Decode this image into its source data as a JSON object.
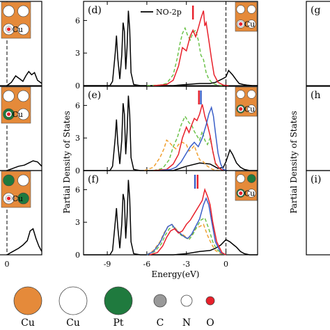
{
  "colors": {
    "cu": "#e58a3a",
    "pt": "#1f7a3e",
    "red": "#e8202a",
    "blue": "#3a5fc8",
    "green": "#6cc24a",
    "orange": "#f0a030",
    "black": "#000000",
    "gray": "#999999"
  },
  "chart_data": {
    "type": "line",
    "xlabel": "Energy(eV)",
    "ylabel": "Partial Density of States",
    "xlim": [
      -10.8,
      2.4
    ],
    "xticks": [
      "-9",
      "-6",
      "-3",
      "0"
    ],
    "yticks": [
      "0",
      "3",
      "6"
    ],
    "legend": "NO-2p",
    "left_partial": {
      "panel_labels": [],
      "xtick": "0"
    },
    "right_partial": {
      "panel_labels": [
        "(g",
        "(h",
        "(i)"
      ]
    },
    "panels": [
      {
        "label": "(d)",
        "ylim": [
          0,
          7.5
        ],
        "marker_x": [
          -2.5
        ],
        "marker_colors": [
          "red"
        ],
        "series": [
          {
            "name": "NO-2p",
            "color": "black",
            "dash": "",
            "x": [
              -10.8,
              -8.8,
              -8.6,
              -8.4,
              -8.3,
              -8.2,
              -8.05,
              -7.9,
              -7.8,
              -7.7,
              -7.6,
              -7.5,
              -7.4,
              -7.3,
              -7.2,
              -7.0,
              -6.5,
              -4.0,
              -3.0,
              -2.0,
              -1.2,
              -0.8,
              -0.3,
              0.0,
              0.2,
              0.5,
              0.8,
              1.0,
              1.3,
              1.6,
              2.0,
              2.4
            ],
            "y": [
              0,
              0,
              0.4,
              3.0,
              4.6,
              2.5,
              0.6,
              2.8,
              5.8,
              5.0,
              1.5,
              3.5,
              6.9,
              5.2,
              1.2,
              0.1,
              0,
              0,
              0.1,
              0.2,
              0.2,
              0.3,
              0.6,
              0.8,
              1.4,
              1.0,
              0.5,
              0.2,
              0.1,
              0.05,
              0,
              0
            ]
          },
          {
            "name": "",
            "color": "green",
            "dash": "5,3",
            "x": [
              -6.0,
              -5.0,
              -4.5,
              -4.0,
              -3.7,
              -3.5,
              -3.3,
              -3.1,
              -2.9,
              -2.7,
              -2.5,
              -2.3,
              -2.1,
              -1.9,
              -1.7,
              -1.5,
              -1.3,
              -1.0,
              -0.6,
              -0.2
            ],
            "y": [
              0,
              0.05,
              0.2,
              1.0,
              2.5,
              3.8,
              4.8,
              5.3,
              4.6,
              4.2,
              4.9,
              5.1,
              4.2,
              2.8,
              2.4,
              1.2,
              0.6,
              0.2,
              0.05,
              0
            ]
          },
          {
            "name": "",
            "color": "red",
            "dash": "",
            "x": [
              -5.5,
              -4.5,
              -4.0,
              -3.6,
              -3.3,
              -3.0,
              -2.7,
              -2.5,
              -2.3,
              -2.1,
              -1.9,
              -1.7,
              -1.6,
              -1.5,
              -1.3,
              -1.1,
              -0.9,
              -0.6,
              -0.2,
              0.2
            ],
            "y": [
              0,
              0.1,
              0.5,
              1.8,
              3.5,
              3.2,
              4.6,
              5.1,
              4.5,
              5.3,
              6.2,
              6.9,
              5.5,
              5.8,
              4.2,
              2.5,
              1.0,
              0.3,
              0.05,
              0
            ]
          }
        ]
      },
      {
        "label": "(e)",
        "ylim": [
          0,
          7.5
        ],
        "marker_x": [
          -2.05,
          -1.9
        ],
        "marker_colors": [
          "red",
          "blue"
        ],
        "series": [
          {
            "name": "",
            "color": "black",
            "dash": "",
            "x": [
              -10.8,
              -8.8,
              -8.6,
              -8.4,
              -8.3,
              -8.2,
              -8.05,
              -7.9,
              -7.8,
              -7.7,
              -7.6,
              -7.5,
              -7.4,
              -7.3,
              -7.2,
              -7.0,
              -6.5,
              -4.0,
              -3.0,
              -2.0,
              -1.2,
              -0.6,
              -0.2,
              0.0,
              0.3,
              0.5,
              0.8,
              1.1,
              1.4,
              1.8,
              2.4
            ],
            "y": [
              0,
              0,
              0.4,
              3.0,
              4.7,
              2.5,
              0.6,
              2.8,
              6.2,
              5.2,
              1.5,
              3.5,
              6.9,
              5.2,
              1.2,
              0.1,
              0,
              0,
              0.4,
              0.7,
              0.6,
              0.2,
              0.3,
              0.8,
              1.9,
              1.5,
              0.7,
              0.3,
              0.1,
              0,
              0
            ]
          },
          {
            "name": "",
            "color": "orange",
            "dash": "5,3",
            "x": [
              -6.2,
              -5.5,
              -5.0,
              -4.7,
              -4.5,
              -4.3,
              -4.0,
              -3.8,
              -3.6,
              -3.3,
              -3.0,
              -2.8,
              -2.6,
              -2.4,
              -2.2,
              -2.0,
              -1.7,
              -1.4,
              -1.0,
              -0.5
            ],
            "y": [
              0,
              0.3,
              1.2,
              2.0,
              2.8,
              2.6,
              2.2,
              2.0,
              2.4,
              2.6,
              2.4,
              1.8,
              2.0,
              2.3,
              1.6,
              1.0,
              0.8,
              0.4,
              0.1,
              0
            ]
          },
          {
            "name": "",
            "color": "green",
            "dash": "5,3",
            "x": [
              -5.5,
              -4.8,
              -4.3,
              -4.0,
              -3.7,
              -3.4,
              -3.1,
              -2.8,
              -2.6,
              -2.4,
              -2.2,
              -2.0,
              -1.8,
              -1.6,
              -1.4,
              -1.2,
              -1.0,
              -0.8,
              -0.5,
              -0.2
            ],
            "y": [
              0,
              0.2,
              1.0,
              2.2,
              3.0,
              4.2,
              5.0,
              4.4,
              4.2,
              3.6,
              3.2,
              2.8,
              3.6,
              2.8,
              2.4,
              3.0,
              1.8,
              0.6,
              0.2,
              0
            ]
          },
          {
            "name": "",
            "color": "red",
            "dash": "",
            "x": [
              -5.5,
              -4.5,
              -4.0,
              -3.6,
              -3.3,
              -3.0,
              -2.8,
              -2.6,
              -2.4,
              -2.2,
              -2.0,
              -1.8,
              -1.7,
              -1.6,
              -1.4,
              -1.2,
              -1.0,
              -0.8,
              -0.5,
              -0.2
            ],
            "y": [
              0,
              0.1,
              0.6,
              1.5,
              3.0,
              4.0,
              3.5,
              4.2,
              4.8,
              4.6,
              5.2,
              6.1,
              5.6,
              5.0,
              4.2,
              3.2,
              1.8,
              0.7,
              0.2,
              0
            ]
          },
          {
            "name": "",
            "color": "blue",
            "dash": "",
            "x": [
              -5.0,
              -4.2,
              -3.8,
              -3.4,
              -3.0,
              -2.7,
              -2.4,
              -2.1,
              -1.8,
              -1.5,
              -1.3,
              -1.1,
              -0.95,
              -0.8,
              -0.6,
              -0.4,
              -0.2,
              0.1
            ],
            "y": [
              0,
              0.1,
              0.3,
              0.8,
              1.6,
              2.2,
              2.6,
              2.2,
              3.0,
              4.2,
              5.2,
              5.8,
              5.0,
              3.5,
              1.6,
              0.6,
              0.1,
              0
            ]
          }
        ]
      },
      {
        "label": "(f)",
        "ylim": [
          0,
          7.5
        ],
        "marker_x": [
          -2.35,
          -2.15
        ],
        "marker_colors": [
          "blue",
          "red"
        ],
        "series": [
          {
            "name": "",
            "color": "black",
            "dash": "",
            "x": [
              -10.8,
              -8.8,
              -8.6,
              -8.4,
              -8.3,
              -8.2,
              -8.05,
              -7.9,
              -7.8,
              -7.7,
              -7.6,
              -7.5,
              -7.4,
              -7.3,
              -7.2,
              -7.0,
              -6.5,
              -4.0,
              -3.0,
              -2.0,
              -1.2,
              -0.8,
              -0.4,
              0.0,
              0.3,
              0.6,
              0.8,
              1.1,
              1.4,
              1.8,
              2.4
            ],
            "y": [
              0,
              0,
              0.4,
              3.0,
              4.3,
              2.5,
              0.6,
              2.8,
              5.6,
              5.0,
              1.5,
              3.5,
              6.9,
              5.2,
              1.2,
              0.1,
              0,
              0,
              0.1,
              0.3,
              0.4,
              0.6,
              0.9,
              1.4,
              1.2,
              0.9,
              0.7,
              0.3,
              0.1,
              0,
              0
            ]
          },
          {
            "name": "",
            "color": "orange",
            "dash": "5,3",
            "x": [
              -6.0,
              -5.5,
              -5.0,
              -4.7,
              -4.4,
              -4.1,
              -3.8,
              -3.5,
              -3.2,
              -2.9,
              -2.6,
              -2.3,
              -2.0,
              -1.7,
              -1.4,
              -1.1,
              -0.8,
              -0.4,
              0.0
            ],
            "y": [
              0,
              0.4,
              1.2,
              2.0,
              2.6,
              2.8,
              2.4,
              2.0,
              1.8,
              1.5,
              1.8,
              2.4,
              2.6,
              2.8,
              1.8,
              1.0,
              0.4,
              0.1,
              0
            ]
          },
          {
            "name": "",
            "color": "green",
            "dash": "5,3",
            "x": [
              -6.0,
              -5.4,
              -4.9,
              -4.6,
              -4.3,
              -4.0,
              -3.7,
              -3.4,
              -3.1,
              -2.8,
              -2.5,
              -2.2,
              -1.9,
              -1.6,
              -1.3,
              -1.0,
              -0.7,
              -0.3,
              0.0
            ],
            "y": [
              0,
              0.3,
              1.0,
              1.8,
              2.4,
              2.6,
              2.2,
              1.8,
              1.6,
              1.4,
              1.9,
              2.6,
              3.2,
              3.4,
              2.4,
              1.2,
              0.5,
              0.1,
              0
            ]
          },
          {
            "name": "",
            "color": "blue",
            "dash": "",
            "x": [
              -6.0,
              -5.5,
              -5.0,
              -4.7,
              -4.4,
              -4.1,
              -3.8,
              -3.5,
              -3.2,
              -2.9,
              -2.6,
              -2.3,
              -2.0,
              -1.7,
              -1.5,
              -1.3,
              -1.1,
              -0.8,
              -0.4,
              0.0
            ],
            "y": [
              0,
              0.3,
              1.1,
              1.9,
              2.6,
              2.8,
              2.3,
              2.0,
              1.7,
              1.5,
              1.9,
              2.6,
              3.3,
              4.6,
              5.2,
              4.6,
              3.2,
              1.2,
              0.2,
              0
            ]
          },
          {
            "name": "",
            "color": "red",
            "dash": "",
            "x": [
              -5.8,
              -5.2,
              -4.8,
              -4.5,
              -4.2,
              -3.9,
              -3.6,
              -3.3,
              -3.0,
              -2.7,
              -2.4,
              -2.1,
              -1.8,
              -1.6,
              -1.4,
              -1.2,
              -1.0,
              -0.7,
              -0.3,
              0.0
            ],
            "y": [
              0,
              0.2,
              0.8,
              1.6,
              2.2,
              2.4,
              2.0,
              2.2,
              2.8,
              3.2,
              3.8,
              4.4,
              5.0,
              6.0,
              5.4,
              4.6,
              3.0,
              1.2,
              0.2,
              0
            ]
          }
        ]
      }
    ],
    "left_panels": [
      {
        "x": [
          0.0,
          0.3,
          0.6,
          0.9,
          1.1,
          1.3,
          1.5,
          1.7,
          1.9,
          2.1,
          2.4
        ],
        "y": [
          0,
          0.3,
          0.9,
          0.6,
          0.4,
          0.9,
          1.3,
          1.0,
          1.2,
          0.5,
          0.2
        ]
      },
      {
        "x": [
          0.0,
          0.4,
          0.8,
          1.2,
          1.5,
          1.8,
          2.1,
          2.4
        ],
        "y": [
          0,
          0.2,
          0.4,
          0.5,
          0.7,
          0.9,
          0.8,
          0.4
        ]
      },
      {
        "x": [
          0.0,
          0.4,
          0.8,
          1.1,
          1.4,
          1.6,
          1.8,
          2.0,
          2.2,
          2.4
        ],
        "y": [
          0,
          0.3,
          0.6,
          0.9,
          1.3,
          2.2,
          2.4,
          1.5,
          0.8,
          0.3
        ]
      }
    ]
  },
  "key": {
    "items": [
      {
        "label": "Cu",
        "kind": "cu-big"
      },
      {
        "label": "Cu",
        "kind": "cu-white"
      },
      {
        "label": "Pt",
        "kind": "pt"
      },
      {
        "label": "C",
        "kind": "c"
      },
      {
        "label": "N",
        "kind": "n"
      },
      {
        "label": "O",
        "kind": "o"
      }
    ]
  },
  "insets": {
    "center_label": "Cu",
    "left_label": "Cu",
    "right_label": "Cu"
  }
}
